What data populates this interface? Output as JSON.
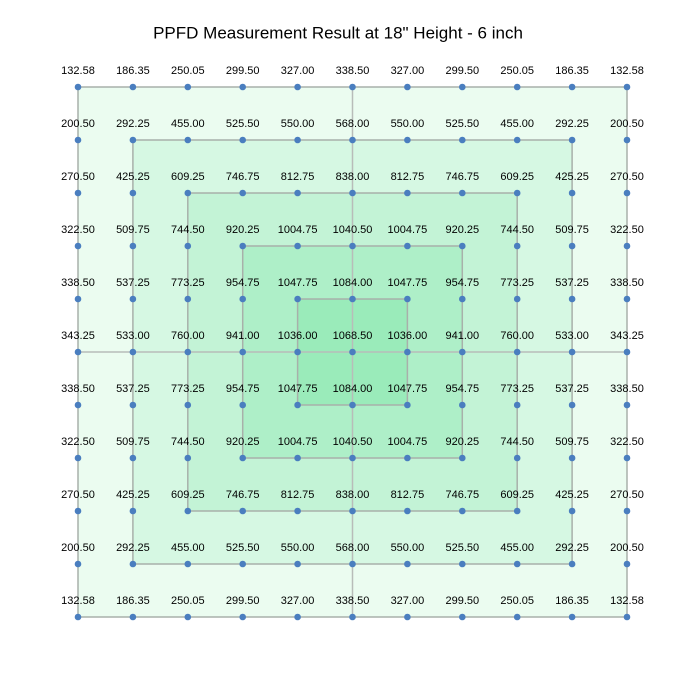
{
  "chart_data": {
    "type": "grid",
    "title": "PPFD Measurement Result at 18\" Height - 6 inch",
    "color": "#4a7ebf",
    "values": [
      [
        132.58,
        186.35,
        250.05,
        299.5,
        327,
        338.5,
        327,
        299.5,
        250.05,
        186.35,
        132.58
      ],
      [
        200.5,
        292.25,
        455,
        525.5,
        550,
        568,
        550,
        525.5,
        455,
        292.25,
        200.5
      ],
      [
        270.5,
        425.25,
        609.25,
        746.75,
        812.75,
        838,
        812.75,
        746.75,
        609.25,
        425.25,
        270.5
      ],
      [
        322.5,
        509.75,
        744.5,
        920.25,
        1004.75,
        1040.5,
        1004.75,
        920.25,
        744.5,
        509.75,
        322.5
      ],
      [
        338.5,
        537.25,
        773.25,
        954.75,
        1047.75,
        1084,
        1047.75,
        954.75,
        773.25,
        537.25,
        338.5
      ],
      [
        343.25,
        533,
        760,
        941,
        1036,
        1068.5,
        1036,
        941,
        760,
        533,
        343.25
      ],
      [
        338.5,
        537.25,
        773.25,
        954.75,
        1047.75,
        1084,
        1047.75,
        954.75,
        773.25,
        537.25,
        338.5
      ],
      [
        322.5,
        509.75,
        744.5,
        920.25,
        1004.75,
        1040.5,
        1004.75,
        920.25,
        744.5,
        509.75,
        322.5
      ],
      [
        270.5,
        425.25,
        609.25,
        746.75,
        812.75,
        838,
        812.75,
        746.75,
        609.25,
        425.25,
        270.5
      ],
      [
        200.5,
        292.25,
        455,
        525.5,
        550,
        568,
        550,
        525.5,
        455,
        292.25,
        200.5
      ],
      [
        132.58,
        186.35,
        250.05,
        299.5,
        327,
        338.5,
        327,
        299.5,
        250.05,
        186.35,
        132.58
      ]
    ],
    "value_labels": [
      [
        "132.58",
        "186.35",
        "250.05",
        "299.50",
        "327.00",
        "338.50",
        "327.00",
        "299.50",
        "250.05",
        "186.35",
        "132.58"
      ],
      [
        "200.50",
        "292.25",
        "455.00",
        "525.50",
        "550.00",
        "568.00",
        "550.00",
        "525.50",
        "455.00",
        "292.25",
        "200.50"
      ],
      [
        "270.50",
        "425.25",
        "609.25",
        "746.75",
        "812.75",
        "838.00",
        "812.75",
        "746.75",
        "609.25",
        "425.25",
        "270.50"
      ],
      [
        "322.50",
        "509.75",
        "744.50",
        "920.25",
        "1004.75",
        "1040.50",
        "1004.75",
        "920.25",
        "744.50",
        "509.75",
        "322.50"
      ],
      [
        "338.50",
        "537.25",
        "773.25",
        "954.75",
        "1047.75",
        "1084.00",
        "1047.75",
        "954.75",
        "773.25",
        "537.25",
        "338.50"
      ],
      [
        "343.25",
        "533.00",
        "760.00",
        "941.00",
        "1036.00",
        "1068.50",
        "1036.00",
        "941.00",
        "760.00",
        "533.00",
        "343.25"
      ],
      [
        "338.50",
        "537.25",
        "773.25",
        "954.75",
        "1047.75",
        "1084.00",
        "1047.75",
        "954.75",
        "773.25",
        "537.25",
        "338.50"
      ],
      [
        "322.50",
        "509.75",
        "744.50",
        "920.25",
        "1004.75",
        "1040.50",
        "1004.75",
        "920.25",
        "744.50",
        "509.75",
        "322.50"
      ],
      [
        "270.50",
        "425.25",
        "609.25",
        "746.75",
        "812.75",
        "838.00",
        "812.75",
        "746.75",
        "609.25",
        "425.25",
        "270.50"
      ],
      [
        "200.50",
        "292.25",
        "455.00",
        "525.50",
        "550.00",
        "568.00",
        "550.00",
        "525.50",
        "455.00",
        "292.25",
        "200.50"
      ],
      [
        "132.58",
        "186.35",
        "250.05",
        "299.50",
        "327.00",
        "338.50",
        "327.00",
        "299.50",
        "250.05",
        "186.35",
        "132.58"
      ]
    ]
  }
}
